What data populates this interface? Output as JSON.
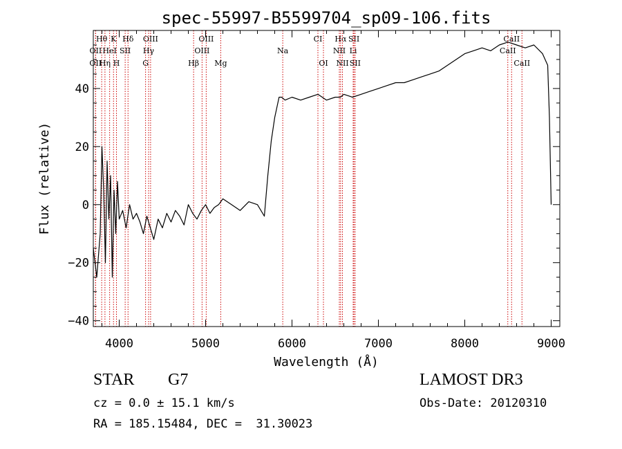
{
  "chart_data": {
    "type": "line",
    "title": "spec-55997-B5599704_sp09-106.fits",
    "xlabel": "Wavelength (Å)",
    "ylabel": "Flux (relative)",
    "xlim": [
      3700,
      9100
    ],
    "ylim": [
      -42,
      60
    ],
    "x_ticks": [
      4000,
      5000,
      6000,
      7000,
      8000,
      9000
    ],
    "y_ticks": [
      -40,
      -20,
      0,
      20,
      40
    ],
    "line_color": "#000000",
    "marker_color": "#cc0000",
    "grid": false,
    "legend": "none",
    "series": [
      {
        "x": [
          3700,
          3740,
          3780,
          3800,
          3820,
          3840,
          3860,
          3880,
          3900,
          3920,
          3940,
          3960,
          3980,
          4000,
          4040,
          4080,
          4120,
          4160,
          4200,
          4240,
          4280,
          4320,
          4360,
          4400,
          4450,
          4500,
          4550,
          4600,
          4650,
          4700,
          4750,
          4800,
          4850,
          4900,
          4950,
          5000,
          5050,
          5100,
          5150,
          5200,
          5300,
          5400,
          5500,
          5600,
          5680,
          5720,
          5760,
          5800,
          5850,
          5880,
          5920,
          6000,
          6100,
          6200,
          6300,
          6400,
          6500,
          6560,
          6600,
          6700,
          6800,
          6900,
          7000,
          7100,
          7200,
          7300,
          7400,
          7500,
          7600,
          7700,
          7800,
          7900,
          8000,
          8100,
          8200,
          8300,
          8400,
          8500,
          8600,
          8700,
          8800,
          8900,
          8960,
          8980,
          9000
        ],
        "y": [
          -15,
          -25,
          -10,
          20,
          5,
          -20,
          15,
          -5,
          10,
          -25,
          5,
          -10,
          8,
          -5,
          -2,
          -8,
          0,
          -5,
          -3,
          -6,
          -10,
          -4,
          -8,
          -12,
          -5,
          -8,
          -3,
          -6,
          -2,
          -4,
          -7,
          0,
          -3,
          -5,
          -2,
          0,
          -3,
          -1,
          0,
          2,
          0,
          -2,
          1,
          0,
          -4,
          10,
          22,
          30,
          37,
          37,
          36,
          37,
          36,
          37,
          38,
          36,
          37,
          37,
          38,
          37,
          38,
          39,
          40,
          41,
          42,
          42,
          43,
          44,
          45,
          46,
          48,
          50,
          52,
          53,
          54,
          53,
          55,
          56,
          55,
          54,
          55,
          52,
          48,
          30,
          0
        ]
      }
    ],
    "annotations": [
      {
        "label": "Hθ",
        "x": 3797,
        "row": 1
      },
      {
        "label": "K",
        "x": 3934,
        "row": 1
      },
      {
        "label": "Hδ",
        "x": 4102,
        "row": 1
      },
      {
        "label": "OIII",
        "x": 4363,
        "row": 1
      },
      {
        "label": "OIII",
        "x": 5007,
        "row": 1
      },
      {
        "label": "CI",
        "x": 6300,
        "row": 1
      },
      {
        "label": "Hα",
        "x": 6563,
        "row": 1
      },
      {
        "label": "SII",
        "x": 6717,
        "row": 1
      },
      {
        "label": "CaII",
        "x": 8542,
        "row": 1
      },
      {
        "label": "OII",
        "x": 3727,
        "row": 2
      },
      {
        "label": "HeI",
        "x": 3889,
        "row": 2
      },
      {
        "label": "SII",
        "x": 4069,
        "row": 2
      },
      {
        "label": "Hγ",
        "x": 4340,
        "row": 2
      },
      {
        "label": "OIII",
        "x": 4959,
        "row": 2
      },
      {
        "label": "Na",
        "x": 5893,
        "row": 2
      },
      {
        "label": "NII",
        "x": 6548,
        "row": 2
      },
      {
        "label": "Li",
        "x": 6708,
        "row": 2
      },
      {
        "label": "CaII",
        "x": 8498,
        "row": 2
      },
      {
        "label": "OII",
        "x": 3726,
        "row": 3
      },
      {
        "label": "Hη",
        "x": 3835,
        "row": 3
      },
      {
        "label": "H",
        "x": 3968,
        "row": 3
      },
      {
        "label": "G",
        "x": 4305,
        "row": 3
      },
      {
        "label": "Hβ",
        "x": 4861,
        "row": 3
      },
      {
        "label": "Mg",
        "x": 5175,
        "row": 3
      },
      {
        "label": "OI",
        "x": 6364,
        "row": 3
      },
      {
        "label": "NII",
        "x": 6584,
        "row": 3
      },
      {
        "label": "SII",
        "x": 6731,
        "row": 3
      },
      {
        "label": "CaII",
        "x": 8662,
        "row": 3
      }
    ]
  },
  "info": {
    "object_class": "STAR",
    "subclass": "G7",
    "survey": "LAMOST DR3",
    "redshift": "cz = 0.0 ± 15.1 km/s",
    "obs_date": "Obs-Date: 20120310",
    "coords": "RA = 185.15484, DEC =  31.30023"
  }
}
